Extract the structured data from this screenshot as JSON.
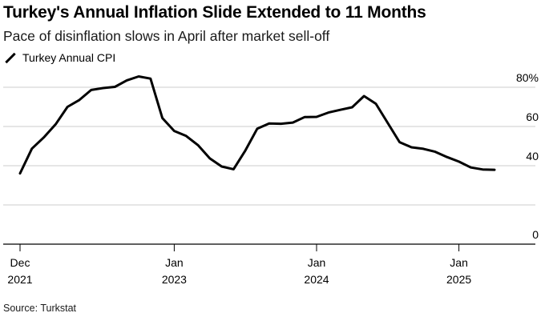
{
  "title": "Turkey's Annual Inflation Slide Extended to 11 Months",
  "subtitle": "Pace of disinflation slows in April after market sell-off",
  "legend": {
    "label": "Turkey Annual CPI",
    "color": "#000000"
  },
  "source": "Source: Turkstat",
  "chart_data": {
    "type": "line",
    "title": "Turkey's Annual Inflation Slide Extended to 11 Months",
    "subtitle": "Pace of disinflation slows in April after market sell-off",
    "xlabel": "",
    "ylabel": "",
    "ylim": [
      0,
      85
    ],
    "yticks": [
      0,
      20,
      40,
      60,
      80
    ],
    "ytick_labels": [
      "0",
      "",
      "40",
      "60",
      "80%"
    ],
    "grid": true,
    "legend_position": "top-left",
    "xticks": [
      {
        "index": 0,
        "label_top": "Dec",
        "label_bottom": "2021"
      },
      {
        "index": 13,
        "label_top": "Jan",
        "label_bottom": "2023"
      },
      {
        "index": 25,
        "label_top": "Jan",
        "label_bottom": "2024"
      },
      {
        "index": 37,
        "label_top": "Jan",
        "label_bottom": "2025"
      }
    ],
    "series": [
      {
        "name": "Turkey Annual CPI",
        "color": "#000000",
        "x": [
          "2021-12",
          "2022-01",
          "2022-02",
          "2022-03",
          "2022-04",
          "2022-05",
          "2022-06",
          "2022-07",
          "2022-08",
          "2022-09",
          "2022-10",
          "2022-11",
          "2022-12",
          "2023-01",
          "2023-02",
          "2023-03",
          "2023-04",
          "2023-05",
          "2023-06",
          "2023-07",
          "2023-08",
          "2023-09",
          "2023-10",
          "2023-11",
          "2023-12",
          "2024-01",
          "2024-02",
          "2024-03",
          "2024-04",
          "2024-05",
          "2024-06",
          "2024-07",
          "2024-08",
          "2024-09",
          "2024-10",
          "2024-11",
          "2024-12",
          "2025-01",
          "2025-02",
          "2025-03",
          "2025-04"
        ],
        "values": [
          36.1,
          48.7,
          54.4,
          61.1,
          70.0,
          73.5,
          78.6,
          79.6,
          80.2,
          83.5,
          85.5,
          84.4,
          64.3,
          57.7,
          55.2,
          50.5,
          43.7,
          39.6,
          38.2,
          47.8,
          58.9,
          61.5,
          61.4,
          62.0,
          64.8,
          64.9,
          67.1,
          68.5,
          69.8,
          75.5,
          71.6,
          61.8,
          52.0,
          49.4,
          48.6,
          47.1,
          44.4,
          42.1,
          39.1,
          38.1,
          37.9
        ]
      }
    ]
  }
}
